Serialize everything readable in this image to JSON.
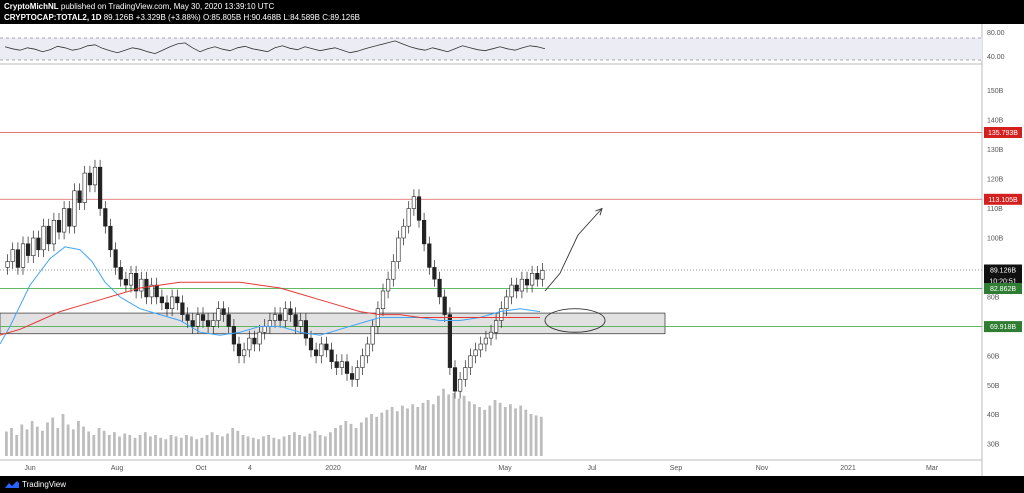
{
  "header": {
    "author": "CryptoMichNL",
    "published": "published on TradingView.com, May 30, 2020 13:39:10 UTC",
    "symbol": "CRYPTOCAP:TOTAL2, 1D",
    "close_value": "89.126B",
    "change": "+3.329B (+3.88%)",
    "open": "O:85.805B",
    "high": "H:90.468B",
    "low": "L:84.589B",
    "close": "C:89.126B"
  },
  "footer": {
    "brand": "TradingView",
    "logo_icon": "tradingview-logo-icon"
  },
  "chart_data": {
    "type": "candlestick",
    "title": "CRYPTOCAP:TOTAL2, 1D",
    "x_tick_labels": [
      "Jun",
      "Aug",
      "Oct",
      "4",
      "2020",
      "Mar",
      "May",
      "Jul",
      "Sep",
      "Nov",
      "2021",
      "Mar"
    ],
    "y_tick_labels": [
      "150B",
      "140B",
      "130B",
      "120B",
      "110B",
      "100B",
      "80B",
      "60B",
      "50B",
      "40B",
      "30B"
    ],
    "y_range": [
      26,
      157
    ],
    "oscillator": {
      "name": "RSI",
      "levels": [
        "80.00",
        "40.00"
      ],
      "values": [
        62,
        58,
        55,
        60,
        57,
        52,
        56,
        63,
        60,
        55,
        58,
        64,
        66,
        59,
        54,
        50,
        55,
        60,
        57,
        52,
        48,
        55,
        62,
        68,
        70,
        60,
        52,
        58,
        62,
        57,
        54,
        60,
        63,
        58,
        55,
        52,
        60,
        64,
        59,
        56,
        62,
        58,
        54,
        57,
        60,
        55,
        50,
        53,
        58,
        62,
        66,
        70,
        74,
        68,
        62,
        58,
        55,
        60,
        56,
        52,
        58,
        64,
        60,
        56,
        54,
        58,
        62,
        58,
        55,
        60,
        64,
        62,
        58
      ]
    },
    "price_labels": [
      {
        "value": 135.793,
        "text": "135.793B",
        "bg": "#d3201f"
      },
      {
        "value": 113.105,
        "text": "113.105B",
        "bg": "#d3201f"
      },
      {
        "value": 89.126,
        "text": "89.126B",
        "bg": "#101010"
      },
      {
        "value": 89.126,
        "text": "10:20:51",
        "bg": "#101010"
      },
      {
        "value": 82.862,
        "text": "82.862B",
        "bg": "#2e7d32"
      },
      {
        "value": 69.918,
        "text": "69.918B",
        "bg": "#2e7d32"
      }
    ],
    "horizontal_lines": [
      {
        "value": 135.793,
        "color": "#e57373"
      },
      {
        "value": 113.105,
        "color": "#e57373"
      },
      {
        "value": 89.126,
        "color": "#999999",
        "style": "dotted"
      },
      {
        "value": 82.862,
        "color": "#4caf50"
      },
      {
        "value": 69.918,
        "color": "#4caf50"
      }
    ],
    "support_zone": [
      67.5,
      74.5
    ],
    "close": [
      92,
      96,
      90,
      98,
      94,
      100,
      96,
      104,
      98,
      106,
      102,
      110,
      104,
      116,
      112,
      122,
      118,
      124,
      110,
      104,
      96,
      90,
      86,
      84,
      88,
      82,
      86,
      80,
      84,
      80,
      78,
      76,
      80,
      78,
      74,
      72,
      70,
      74,
      72,
      70,
      72,
      76,
      74,
      70,
      64,
      60,
      62,
      66,
      64,
      68,
      70,
      72,
      74,
      72,
      76,
      74,
      70,
      72,
      66,
      62,
      60,
      64,
      62,
      58,
      56,
      58,
      54,
      52,
      56,
      60,
      64,
      70,
      76,
      82,
      86,
      92,
      100,
      104,
      110,
      114,
      106,
      98,
      90,
      86,
      80,
      74,
      56,
      48,
      52,
      56,
      60,
      62,
      64,
      66,
      68,
      72,
      76,
      80,
      84,
      82,
      86,
      84,
      88,
      86,
      89
    ],
    "volume_relative": [
      0.35,
      0.4,
      0.3,
      0.45,
      0.38,
      0.5,
      0.42,
      0.36,
      0.48,
      0.55,
      0.4,
      0.6,
      0.45,
      0.38,
      0.5,
      0.42,
      0.35,
      0.3,
      0.4,
      0.36,
      0.3,
      0.34,
      0.28,
      0.32,
      0.3,
      0.26,
      0.3,
      0.34,
      0.28,
      0.3,
      0.26,
      0.24,
      0.3,
      0.28,
      0.26,
      0.3,
      0.28,
      0.24,
      0.26,
      0.3,
      0.34,
      0.3,
      0.28,
      0.32,
      0.4,
      0.36,
      0.3,
      0.28,
      0.26,
      0.24,
      0.28,
      0.3,
      0.26,
      0.24,
      0.28,
      0.3,
      0.34,
      0.3,
      0.28,
      0.32,
      0.36,
      0.3,
      0.28,
      0.34,
      0.4,
      0.44,
      0.5,
      0.46,
      0.4,
      0.48,
      0.55,
      0.6,
      0.56,
      0.62,
      0.66,
      0.7,
      0.64,
      0.72,
      0.68,
      0.74,
      0.7,
      0.76,
      0.8,
      0.74,
      0.86,
      0.96,
      0.88,
      0.9,
      0.82,
      0.86,
      0.78,
      0.74,
      0.7,
      0.66,
      0.72,
      0.8,
      0.76,
      0.7,
      0.74,
      0.68,
      0.72,
      0.66,
      0.6,
      0.58,
      0.56
    ],
    "ma_blue": [
      [
        0,
        64
      ],
      [
        10,
        70
      ],
      [
        30,
        84
      ],
      [
        50,
        93
      ],
      [
        65,
        97
      ],
      [
        80,
        96
      ],
      [
        92,
        92
      ],
      [
        105,
        85
      ],
      [
        120,
        80
      ],
      [
        140,
        76
      ],
      [
        160,
        74
      ],
      [
        180,
        72
      ],
      [
        200,
        68
      ],
      [
        220,
        67
      ],
      [
        240,
        68
      ],
      [
        260,
        70
      ],
      [
        280,
        70
      ],
      [
        300,
        68
      ],
      [
        320,
        67
      ],
      [
        340,
        69
      ],
      [
        360,
        71
      ],
      [
        380,
        73
      ],
      [
        400,
        73
      ],
      [
        420,
        73
      ],
      [
        440,
        72
      ],
      [
        460,
        72
      ],
      [
        480,
        73
      ],
      [
        500,
        75
      ],
      [
        520,
        76
      ],
      [
        540,
        75
      ]
    ],
    "ma_red": [
      [
        0,
        67
      ],
      [
        20,
        69
      ],
      [
        40,
        72
      ],
      [
        60,
        75
      ],
      [
        80,
        77
      ],
      [
        100,
        79
      ],
      [
        120,
        81
      ],
      [
        140,
        83
      ],
      [
        160,
        84
      ],
      [
        180,
        85
      ],
      [
        200,
        85
      ],
      [
        220,
        85
      ],
      [
        240,
        85
      ],
      [
        260,
        84
      ],
      [
        280,
        83
      ],
      [
        300,
        81
      ],
      [
        320,
        79
      ],
      [
        340,
        77
      ],
      [
        360,
        75
      ],
      [
        380,
        74
      ],
      [
        400,
        74
      ],
      [
        420,
        73
      ],
      [
        440,
        73
      ],
      [
        460,
        73
      ],
      [
        480,
        73
      ],
      [
        500,
        73
      ],
      [
        520,
        73
      ],
      [
        540,
        73
      ]
    ],
    "projection_arrow": [
      [
        545,
        82
      ],
      [
        560,
        88
      ],
      [
        578,
        101
      ],
      [
        602,
        110
      ]
    ],
    "ellipse": {
      "cx": 575,
      "cy": 72,
      "rx": 30,
      "ry": 4
    }
  }
}
